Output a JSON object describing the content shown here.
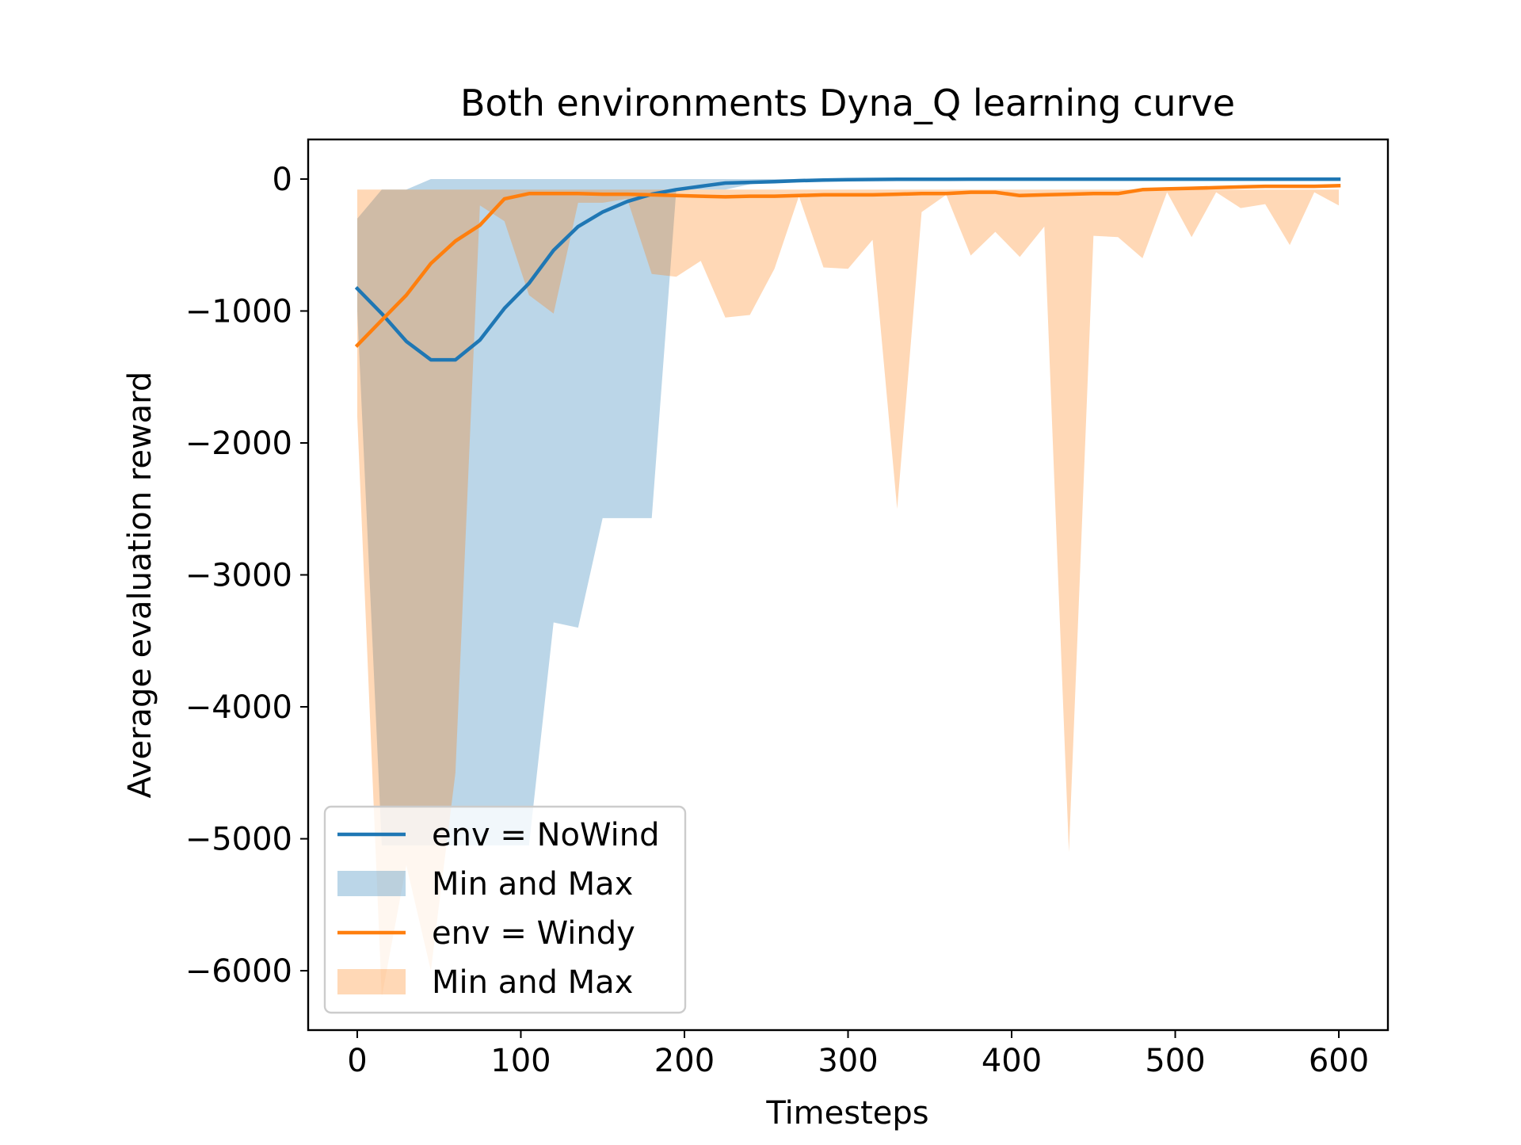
{
  "chart_data": {
    "type": "line",
    "title": "Both environments Dyna_Q learning curve",
    "xlabel": "Timesteps",
    "ylabel": "Average evaluation reward",
    "xlim": [
      -30,
      630
    ],
    "ylim": [
      -6450,
      300
    ],
    "xticks": [
      0,
      100,
      200,
      300,
      400,
      500,
      600
    ],
    "yticks": [
      0,
      -1000,
      -2000,
      -3000,
      -4000,
      -5000,
      -6000
    ],
    "xtick_labels": [
      "0",
      "100",
      "200",
      "300",
      "400",
      "500",
      "600"
    ],
    "ytick_labels": [
      "0",
      "−1000",
      "−2000",
      "−3000",
      "−4000",
      "−5000",
      "−6000"
    ],
    "grid": false,
    "legend_position": "lower-left",
    "legend": [
      {
        "label": "env = NoWind",
        "kind": "line",
        "series": 0
      },
      {
        "label": "Min and Max",
        "kind": "band",
        "series": 0
      },
      {
        "label": "env = Windy",
        "kind": "line",
        "series": 1
      },
      {
        "label": "Min and Max",
        "kind": "band",
        "series": 1
      }
    ],
    "series": [
      {
        "name": "env = NoWind",
        "color": "#1f77b4",
        "band_color": "#1f77b4",
        "band_opacity": 0.3,
        "x": [
          0,
          15,
          30,
          45,
          60,
          75,
          90,
          105,
          120,
          135,
          150,
          165,
          180,
          195,
          210,
          225,
          240,
          255,
          270,
          285,
          300,
          315,
          330,
          345,
          360,
          375,
          390,
          405,
          420,
          435,
          450,
          465,
          480,
          495,
          510,
          525,
          540,
          555,
          570,
          585,
          600
        ],
        "mean": [
          -830,
          -1020,
          -1230,
          -1370,
          -1370,
          -1220,
          -980,
          -790,
          -540,
          -360,
          -250,
          -170,
          -115,
          -80,
          -55,
          -30,
          -25,
          -20,
          -12,
          -8,
          -5,
          -3,
          -2,
          -2,
          -2,
          -1,
          -1,
          -1,
          -1,
          -1,
          -1,
          -1,
          -1,
          -1,
          -1,
          -1,
          -1,
          -1,
          -1,
          -1,
          -1
        ],
        "max": [
          -300,
          -80,
          -80,
          0,
          0,
          0,
          0,
          0,
          0,
          0,
          0,
          0,
          0,
          0,
          0,
          0,
          0,
          0,
          0,
          0,
          0,
          0,
          0,
          0,
          0,
          0,
          0,
          0,
          0,
          0,
          0,
          0,
          0,
          0,
          0,
          0,
          0,
          0,
          0,
          0,
          0
        ],
        "min": [
          -1000,
          -5050,
          -5050,
          -5050,
          -5050,
          -5050,
          -5050,
          -5050,
          -3360,
          -3400,
          -2570,
          -2570,
          -2570,
          -80,
          -80,
          -80,
          -40,
          -10,
          -10,
          -5,
          -5,
          -5,
          -5,
          -5,
          -5,
          -5,
          -5,
          -5,
          -5,
          -5,
          -5,
          -5,
          -5,
          -5,
          -5,
          -5,
          -5,
          -5,
          -5,
          -5,
          -5
        ]
      },
      {
        "name": "env = Windy",
        "color": "#ff7f0e",
        "band_color": "#ff7f0e",
        "band_opacity": 0.3,
        "x": [
          0,
          15,
          30,
          45,
          60,
          75,
          90,
          105,
          120,
          135,
          150,
          165,
          180,
          195,
          210,
          225,
          240,
          255,
          270,
          285,
          300,
          315,
          330,
          345,
          360,
          375,
          390,
          405,
          420,
          435,
          450,
          465,
          480,
          495,
          510,
          525,
          540,
          555,
          570,
          585,
          600
        ],
        "mean": [
          -1260,
          -1070,
          -880,
          -640,
          -470,
          -350,
          -150,
          -110,
          -110,
          -110,
          -115,
          -115,
          -120,
          -125,
          -130,
          -135,
          -130,
          -130,
          -125,
          -120,
          -120,
          -120,
          -115,
          -110,
          -110,
          -100,
          -100,
          -125,
          -120,
          -115,
          -110,
          -110,
          -80,
          -75,
          -70,
          -65,
          -60,
          -55,
          -55,
          -55,
          -50
        ],
        "max": [
          -80,
          -80,
          -80,
          -80,
          -80,
          -80,
          -80,
          -80,
          -80,
          -80,
          -80,
          -80,
          -80,
          -80,
          -80,
          -80,
          -80,
          -80,
          -80,
          -80,
          -80,
          -80,
          -80,
          -80,
          -80,
          -80,
          -80,
          -80,
          -80,
          -80,
          -80,
          -80,
          -80,
          -80,
          -80,
          -80,
          -80,
          -80,
          -80,
          -80,
          -80
        ],
        "min": [
          -1800,
          -6200,
          -5200,
          -6000,
          -4500,
          -200,
          -320,
          -880,
          -1020,
          -180,
          -180,
          -150,
          -720,
          -740,
          -620,
          -1050,
          -1030,
          -680,
          -130,
          -670,
          -680,
          -460,
          -2500,
          -250,
          -120,
          -580,
          -400,
          -590,
          -360,
          -5100,
          -430,
          -440,
          -600,
          -100,
          -440,
          -100,
          -220,
          -190,
          -500,
          -100,
          -200
        ]
      }
    ]
  }
}
